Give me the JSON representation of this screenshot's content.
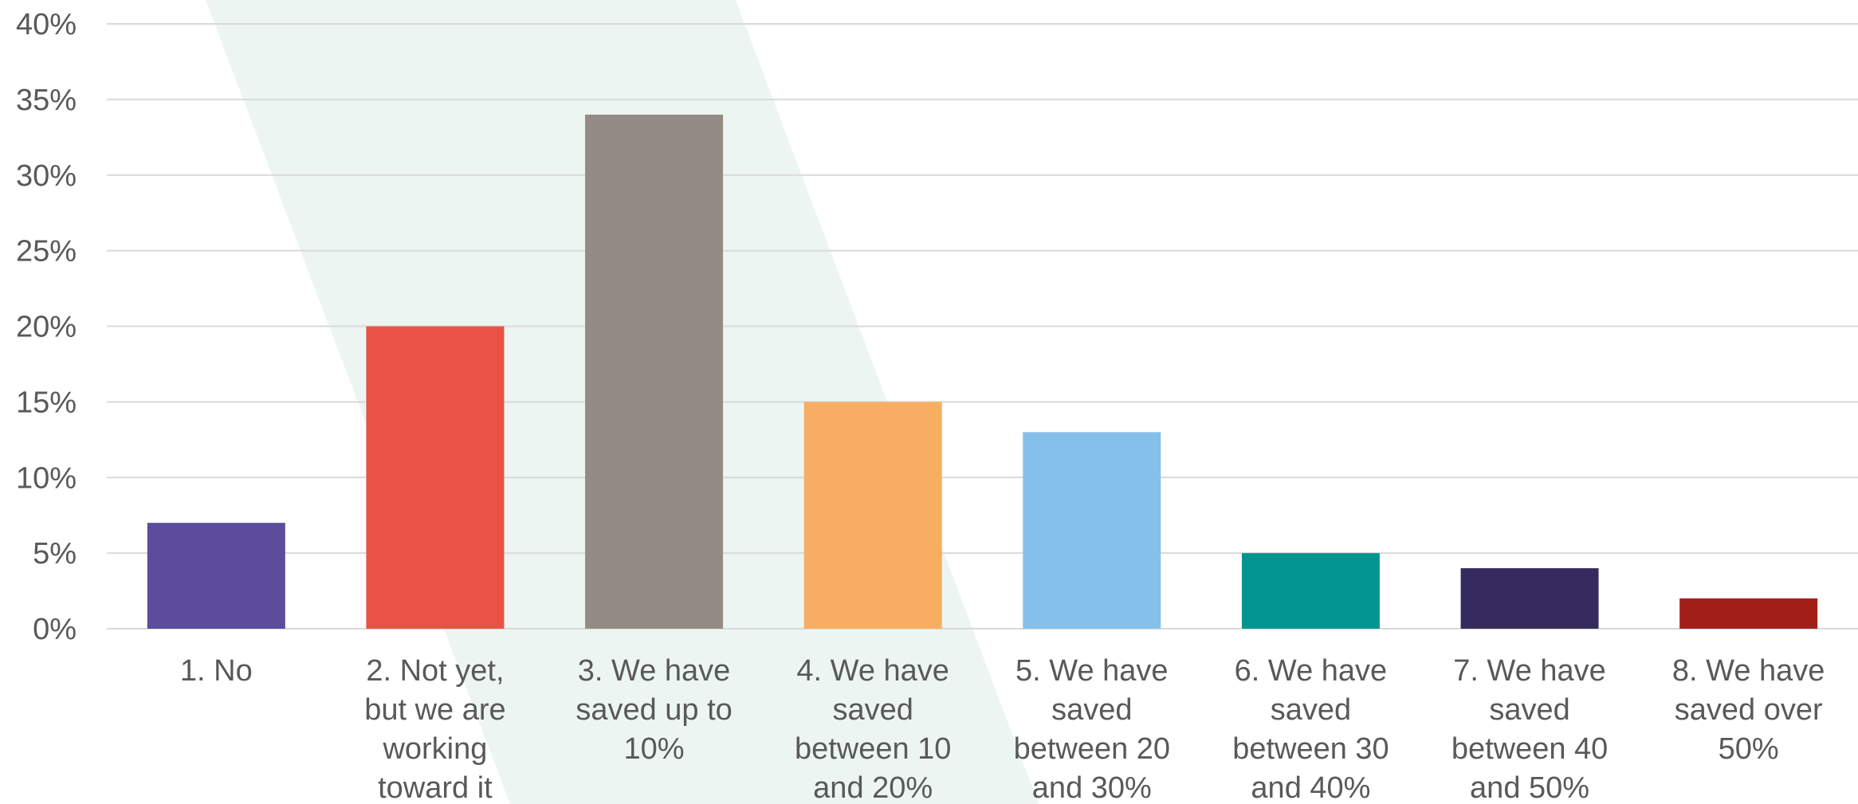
{
  "chart_data": {
    "type": "bar",
    "title": "",
    "xlabel": "",
    "ylabel": "",
    "ylim": [
      0,
      40
    ],
    "yticks": [
      0,
      5,
      10,
      15,
      20,
      25,
      30,
      35,
      40
    ],
    "ytick_labels": [
      "0%",
      "5%",
      "10%",
      "15%",
      "20%",
      "25%",
      "30%",
      "35%",
      "40%"
    ],
    "grid": true,
    "legend": "none",
    "categories": [
      "1.  No",
      "2.  Not yet, but we are working toward it",
      "3.  We have saved up to 10%",
      "4.  We have saved between 10 and 20%",
      "5.  We have saved between 20 and 30%",
      "6.  We have saved between 30 and 40%",
      "7.  We have saved between 40 and 50%",
      "8.  We have saved over 50%"
    ],
    "category_label_lines": [
      [
        "1.  No"
      ],
      [
        "2.  Not yet,",
        "but we are",
        "working",
        "toward it"
      ],
      [
        "3.  We have",
        "saved up to",
        "10%"
      ],
      [
        "4.  We have",
        "saved",
        "between 10",
        "and 20%"
      ],
      [
        "5.  We have",
        "saved",
        "between 20",
        "and 30%"
      ],
      [
        "6.  We have",
        "saved",
        "between 30",
        "and 40%"
      ],
      [
        "7.  We have",
        "saved",
        "between 40",
        "and 50%"
      ],
      [
        "8.  We have",
        "saved over",
        "50%"
      ]
    ],
    "values": [
      7,
      20,
      34,
      15,
      13,
      5,
      4,
      2
    ],
    "colors": [
      "#5b4c9c",
      "#e95244",
      "#948b85",
      "#f7ae62",
      "#85c0ea",
      "#00968f",
      "#362b5e",
      "#a21f18"
    ],
    "gridline_color": "#d9d9d9",
    "background_accent_color": "#edf5f3"
  }
}
